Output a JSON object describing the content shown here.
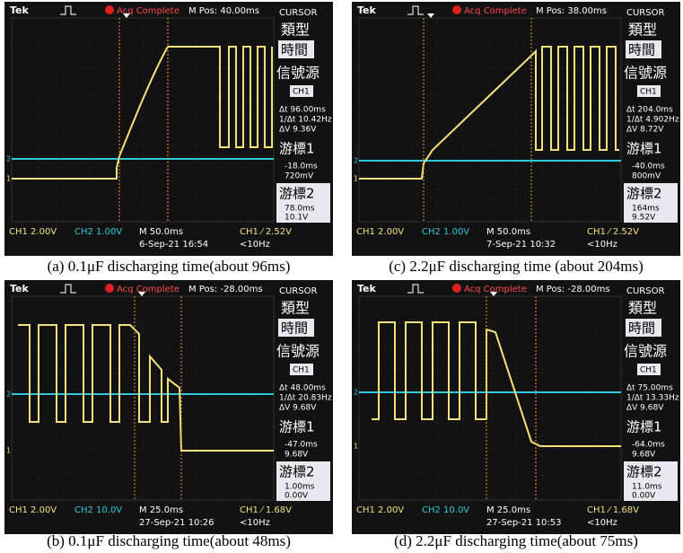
{
  "panels": [
    {
      "caption": "(a) 0.1μF discharging time(about 96ms)",
      "brand": "Tek",
      "status": "Acq Complete",
      "mpos": "M Pos: 40.00ms",
      "menu_title": "CURSOR",
      "type_label": "類型",
      "type_value": "時間",
      "source_label": "信號源",
      "source_value": "CH1",
      "dt": "Δt 96.00ms",
      "freq": "1/Δt 10.42Hz",
      "dv": "ΔV 9.36V",
      "cursor1": "游標1",
      "cursor1_t": "-18.0ms",
      "cursor1_v": "720mV",
      "cursor2": "游標2",
      "cursor2_t": "78.0ms",
      "cursor2_v": "10.1V",
      "ch1_marker": "1",
      "ch2_marker": "2",
      "ch1": "CH1 2.00V",
      "ch2": "CH2 1.00V",
      "timebase": "M 50.0ms",
      "trigger": "CH1 ⁄ 2.52V",
      "date": "6-Sep-21 16:54",
      "rate": "<10Hz"
    },
    {
      "caption": "(c) 2.2μF discharging time (about 204ms)",
      "brand": "Tek",
      "status": "Acq Complete",
      "mpos": "M Pos: 38.00ms",
      "menu_title": "CURSOR",
      "type_label": "類型",
      "type_value": "時間",
      "source_label": "信號源",
      "source_value": "CH1",
      "dt": "Δt 204.0ms",
      "freq": "1/Δt 4.902Hz",
      "dv": "ΔV 8.72V",
      "cursor1": "游標1",
      "cursor1_t": "-40.0ms",
      "cursor1_v": "800mV",
      "cursor2": "游標2",
      "cursor2_t": "164ms",
      "cursor2_v": "9.52V",
      "ch1_marker": "1",
      "ch2_marker": "2",
      "ch1": "CH1 2.00V",
      "ch2": "CH2 1.00V",
      "timebase": "M 50.0ms",
      "trigger": "CH1 ⁄ 2.52V",
      "date": "7-Sep-21 10:32",
      "rate": "<10Hz"
    },
    {
      "caption": "(b) 0.1μF discharging time(about 48ms)",
      "brand": "Tek",
      "status": "Acq Complete",
      "mpos": "M Pos: -28.00ms",
      "menu_title": "CURSOR",
      "type_label": "類型",
      "type_value": "時間",
      "source_label": "信號源",
      "source_value": "CH1",
      "dt": "Δt 48.00ms",
      "freq": "1/Δt 20.83Hz",
      "dv": "ΔV 9.68V",
      "cursor1": "游標1",
      "cursor1_t": "-47.0ms",
      "cursor1_v": "9.68V",
      "cursor2": "游標2",
      "cursor2_t": "1.00ms",
      "cursor2_v": "0.00V",
      "ch1_marker": "1",
      "ch2_marker": "2",
      "ch1": "CH1 2.00V",
      "ch2": "CH2 10.0V",
      "timebase": "M 25.0ms",
      "trigger": "CH1 ⁄ 1.68V",
      "date": "27-Sep-21 10:26",
      "rate": "<10Hz"
    },
    {
      "caption": "(d) 2.2μF discharging time(about 75ms)",
      "brand": "Tek",
      "status": "Acq Complete",
      "mpos": "M Pos: -28.00ms",
      "menu_title": "CURSOR",
      "type_label": "類型",
      "type_value": "時間",
      "source_label": "信號源",
      "source_value": "CH1",
      "dt": "Δt 75.00ms",
      "freq": "1/Δt 13.33Hz",
      "dv": "ΔV 9.68V",
      "cursor1": "游標1",
      "cursor1_t": "-64.0ms",
      "cursor1_v": "9.68V",
      "cursor2": "游標2",
      "cursor2_t": "11.0ms",
      "cursor2_v": "0.00V",
      "ch1_marker": "1",
      "ch2_marker": "2",
      "ch1": "CH1 2.00V",
      "ch2": "CH2 10.0V",
      "timebase": "M 25.0ms",
      "trigger": "CH1 ⁄ 1.68V",
      "date": "27-Sep-21 10:53",
      "rate": "<10Hz"
    }
  ]
}
